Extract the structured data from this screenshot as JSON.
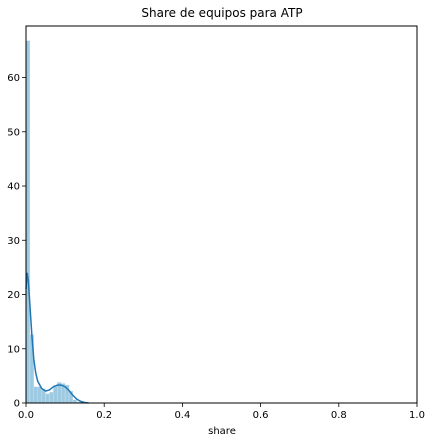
{
  "chart_data": {
    "type": "histogram",
    "title": "Share de equipos para ATP",
    "xlabel": "share",
    "ylabel": "",
    "xlim": [
      0,
      1
    ],
    "ylim": [
      0,
      69.5
    ],
    "x_ticks": [
      "0.0",
      "0.2",
      "0.4",
      "0.6",
      "0.8",
      "1.0"
    ],
    "x_tick_values": [
      0,
      0.2,
      0.4,
      0.6,
      0.8,
      1.0
    ],
    "y_ticks": [
      "0",
      "10",
      "20",
      "30",
      "40",
      "50",
      "60"
    ],
    "y_tick_values": [
      0,
      10,
      20,
      30,
      40,
      50,
      60
    ],
    "grid": false,
    "bar_color": "#9ecae1",
    "kde_color": "#1f77b4",
    "bins": [
      {
        "x0": 0.0,
        "x1": 0.01,
        "value": 66.8
      },
      {
        "x0": 0.01,
        "x1": 0.02,
        "value": 12.6
      },
      {
        "x0": 0.02,
        "x1": 0.03,
        "value": 3.0
      },
      {
        "x0": 0.03,
        "x1": 0.04,
        "value": 3.0
      },
      {
        "x0": 0.04,
        "x1": 0.05,
        "value": 2.6
      },
      {
        "x0": 0.05,
        "x1": 0.06,
        "value": 1.7
      },
      {
        "x0": 0.06,
        "x1": 0.07,
        "value": 2.0
      },
      {
        "x0": 0.07,
        "x1": 0.08,
        "value": 3.2
      },
      {
        "x0": 0.08,
        "x1": 0.09,
        "value": 3.8
      },
      {
        "x0": 0.09,
        "x1": 0.1,
        "value": 3.6
      },
      {
        "x0": 0.1,
        "x1": 0.11,
        "value": 3.3
      },
      {
        "x0": 0.11,
        "x1": 0.12,
        "value": 2.2
      },
      {
        "x0": 0.12,
        "x1": 0.13,
        "value": 0.6
      },
      {
        "x0": 0.13,
        "x1": 0.14,
        "value": 0.2
      },
      {
        "x0": 0.14,
        "x1": 0.15,
        "value": 0.1
      }
    ],
    "kde": {
      "x": [
        0.0,
        0.003,
        0.006,
        0.01,
        0.015,
        0.02,
        0.025,
        0.03,
        0.04,
        0.05,
        0.06,
        0.07,
        0.08,
        0.09,
        0.1,
        0.11,
        0.12,
        0.13,
        0.14,
        0.15,
        0.16
      ],
      "y": [
        21.0,
        24.0,
        22.5,
        18.0,
        12.5,
        8.0,
        5.5,
        4.0,
        2.7,
        2.2,
        2.4,
        3.0,
        3.3,
        3.3,
        3.0,
        2.3,
        1.4,
        0.7,
        0.3,
        0.1,
        0.0
      ]
    }
  }
}
